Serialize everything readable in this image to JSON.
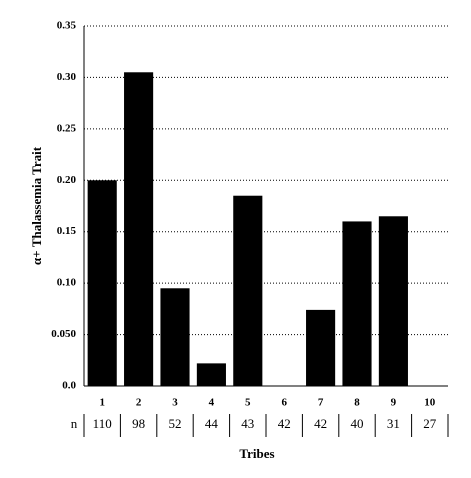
{
  "chart_data": {
    "type": "bar",
    "y_label": "α+ Thalassemia Trait",
    "x_label": "Tribes",
    "categories": [
      "1",
      "2",
      "3",
      "4",
      "5",
      "6",
      "7",
      "8",
      "9",
      "10"
    ],
    "values": [
      0.2,
      0.305,
      0.095,
      0.022,
      0.185,
      0,
      0.074,
      0.16,
      0.165,
      0
    ],
    "color": "#000000",
    "n_label": "n",
    "sample_sizes": [
      110,
      98,
      52,
      44,
      43,
      42,
      42,
      40,
      31,
      27
    ],
    "ylim": [
      0,
      0.35
    ],
    "yticks": [
      {
        "value": 0,
        "label": "0.0"
      },
      {
        "value": 0.05,
        "label": "0.050"
      },
      {
        "value": 0.1,
        "label": "0.10"
      },
      0.15,
      {
        "value": 0.2,
        "label": "0.20"
      },
      0.25,
      {
        "value": 0.3,
        "label": "0.30"
      },
      0.35
    ],
    "grid": true
  }
}
